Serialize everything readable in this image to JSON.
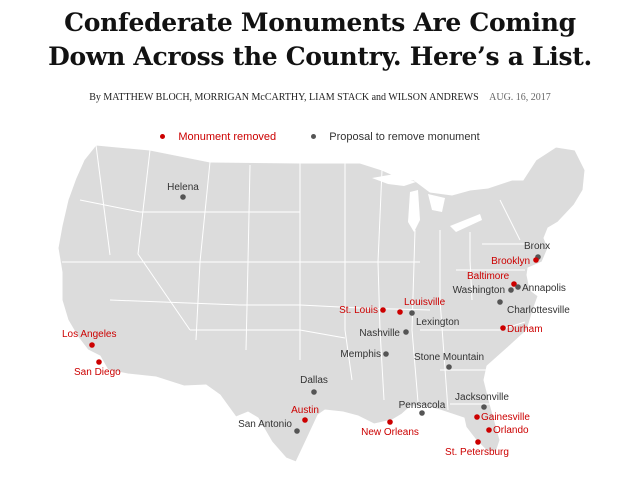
{
  "article": {
    "headline_line1": "Confederate Monuments Are Coming",
    "headline_line2": "Down Across the Country. Here’s a List.",
    "byline": "By MATTHEW BLOCH, MORRIGAN McCARTHY, LIAM STACK and WILSON ANDREWS",
    "date": "AUG. 16, 2017"
  },
  "legend": {
    "removed": "Monument removed",
    "proposal": "Proposal to remove monument"
  },
  "colors": {
    "removed": "#cc0000",
    "proposal": "#555555",
    "land": "#dcdcdc",
    "border": "#ffffff"
  },
  "cities": [
    {
      "name": "Helena",
      "status": "proposal"
    },
    {
      "name": "Bronx",
      "status": "proposal"
    },
    {
      "name": "Brooklyn",
      "status": "removed"
    },
    {
      "name": "Baltimore",
      "status": "removed"
    },
    {
      "name": "Annapolis",
      "status": "proposal"
    },
    {
      "name": "Washington",
      "status": "proposal"
    },
    {
      "name": "Charlottesville",
      "status": "proposal"
    },
    {
      "name": "St. Louis",
      "status": "removed"
    },
    {
      "name": "Louisville",
      "status": "removed"
    },
    {
      "name": "Lexington",
      "status": "proposal"
    },
    {
      "name": "Nashville",
      "status": "proposal"
    },
    {
      "name": "Durham",
      "status": "removed"
    },
    {
      "name": "Memphis",
      "status": "proposal"
    },
    {
      "name": "Stone Mountain",
      "status": "proposal"
    },
    {
      "name": "Los Angeles",
      "status": "removed"
    },
    {
      "name": "San Diego",
      "status": "removed"
    },
    {
      "name": "Dallas",
      "status": "proposal"
    },
    {
      "name": "Austin",
      "status": "removed"
    },
    {
      "name": "San Antonio",
      "status": "proposal"
    },
    {
      "name": "Pensacola",
      "status": "proposal"
    },
    {
      "name": "New Orleans",
      "status": "removed"
    },
    {
      "name": "Jacksonville",
      "status": "proposal"
    },
    {
      "name": "Gainesville",
      "status": "removed"
    },
    {
      "name": "Orlando",
      "status": "removed"
    },
    {
      "name": "St. Petersburg",
      "status": "removed"
    }
  ]
}
